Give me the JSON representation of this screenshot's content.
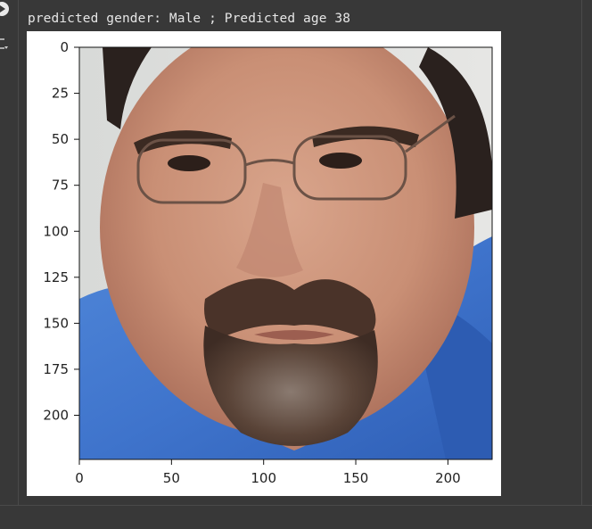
{
  "output": {
    "text": "predicted gender: Male ; Predicted age 38"
  },
  "icons": {
    "run": "play-icon",
    "output_menu": "output-actions-icon"
  },
  "colors": {
    "cell_background": "#383838",
    "figure_background": "#ffffff",
    "output_text": "#e6e6e6"
  },
  "chart_data": {
    "type": "image",
    "content": "face photo",
    "title": "",
    "xlabel": "",
    "ylabel": "",
    "xlim": [
      0,
      224
    ],
    "ylim": [
      224,
      0
    ],
    "xticks": [
      0,
      50,
      100,
      150,
      200
    ],
    "yticks": [
      0,
      25,
      50,
      75,
      100,
      125,
      150,
      175,
      200
    ],
    "xtick_labels": [
      "0",
      "50",
      "100",
      "150",
      "200"
    ],
    "ytick_labels": [
      "0",
      "25",
      "50",
      "75",
      "100",
      "125",
      "150",
      "175",
      "200"
    ],
    "grid": false
  }
}
